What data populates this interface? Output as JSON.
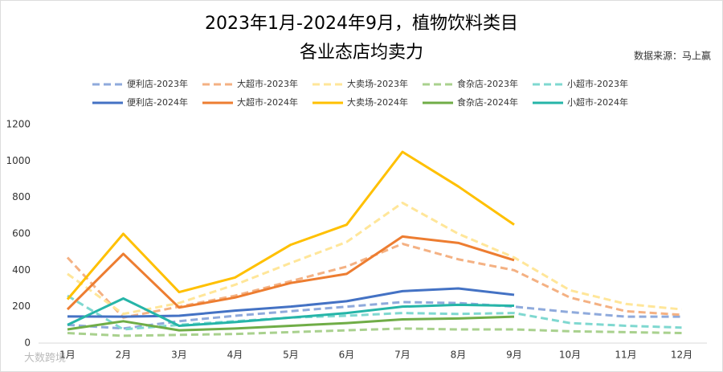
{
  "chart_data": {
    "type": "line",
    "title": "2023年1月-2024年9月，植物饮料类目",
    "subtitle": "各业态店均卖力",
    "source": "数据来源：马上赢",
    "watermark": "大数跨境",
    "categories": [
      "1月",
      "2月",
      "3月",
      "4月",
      "5月",
      "6月",
      "7月",
      "8月",
      "9月",
      "10月",
      "11月",
      "12月"
    ],
    "ylim": [
      0,
      1200
    ],
    "yticks": [
      0,
      200,
      400,
      600,
      800,
      1000,
      1200
    ],
    "series": [
      {
        "name": "便利店-2023年",
        "color": "#8faadc",
        "dash": true,
        "values": [
          100,
          80,
          120,
          150,
          175,
          200,
          225,
          220,
          200,
          170,
          145,
          145
        ]
      },
      {
        "name": "大超市-2023年",
        "color": "#f4b183",
        "dash": true,
        "values": [
          470,
          140,
          200,
          260,
          340,
          420,
          545,
          460,
          400,
          250,
          175,
          155
        ]
      },
      {
        "name": "大卖场-2023年",
        "color": "#ffe699",
        "dash": true,
        "values": [
          380,
          160,
          220,
          320,
          440,
          555,
          770,
          600,
          470,
          290,
          215,
          185
        ]
      },
      {
        "name": "食杂店-2023年",
        "color": "#a9d18e",
        "dash": true,
        "values": [
          55,
          40,
          45,
          50,
          60,
          70,
          80,
          75,
          75,
          65,
          60,
          55
        ]
      },
      {
        "name": "小超市-2023年",
        "color": "#7fd8d0",
        "dash": true,
        "values": [
          260,
          75,
          100,
          120,
          140,
          150,
          165,
          160,
          165,
          110,
          95,
          85
        ]
      },
      {
        "name": "便利店-2024年",
        "color": "#4472c4",
        "dash": false,
        "values": [
          146,
          145,
          150,
          178,
          200,
          230,
          285,
          300,
          265,
          null,
          null,
          null
        ]
      },
      {
        "name": "大超市-2024年",
        "color": "#ed7d31",
        "dash": false,
        "values": [
          185,
          490,
          195,
          250,
          330,
          380,
          585,
          550,
          455,
          null,
          null,
          null
        ]
      },
      {
        "name": "大卖场-2024年",
        "color": "#ffc000",
        "dash": false,
        "values": [
          240,
          600,
          280,
          360,
          540,
          650,
          1050,
          860,
          650,
          null,
          null,
          null
        ]
      },
      {
        "name": "食杂店-2024年",
        "color": "#70ad47",
        "dash": false,
        "values": [
          75,
          120,
          70,
          80,
          95,
          110,
          130,
          135,
          145,
          null,
          null,
          null
        ]
      },
      {
        "name": "小超市-2024年",
        "color": "#26b5a8",
        "dash": false,
        "values": [
          100,
          245,
          95,
          115,
          140,
          165,
          200,
          210,
          205,
          null,
          null,
          null
        ]
      }
    ]
  }
}
